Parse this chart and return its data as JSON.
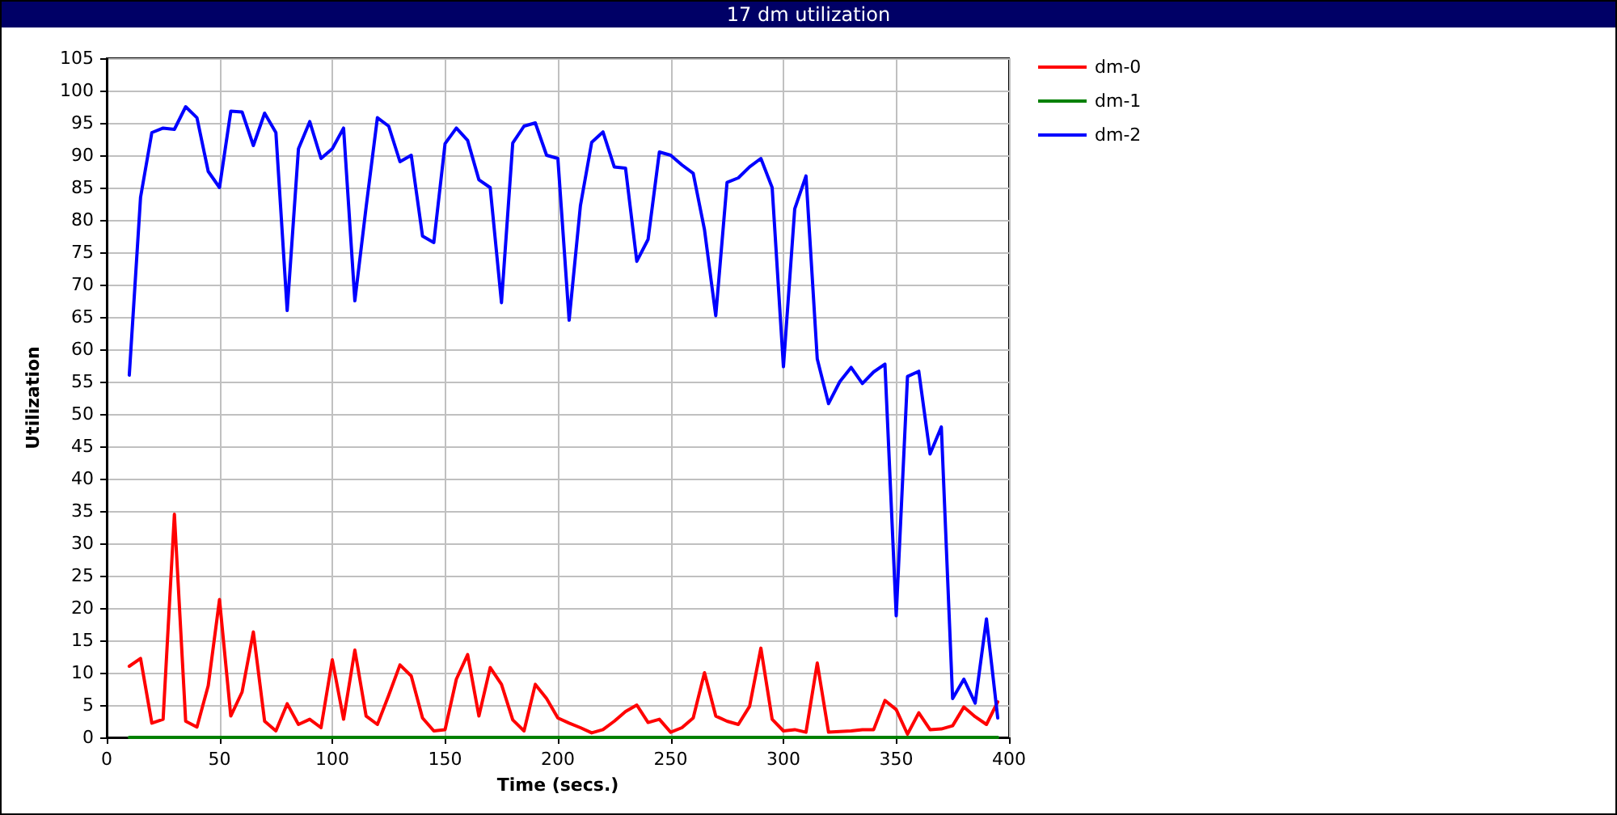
{
  "chart_data": {
    "type": "line",
    "title": "17 dm utilization",
    "xlabel": "Time (secs.)",
    "ylabel": "Utilization",
    "x": [
      10,
      15,
      20,
      25,
      30,
      35,
      40,
      45,
      50,
      55,
      60,
      65,
      70,
      75,
      80,
      85,
      90,
      95,
      100,
      105,
      110,
      115,
      120,
      125,
      130,
      135,
      140,
      145,
      150,
      155,
      160,
      165,
      170,
      175,
      180,
      185,
      190,
      195,
      200,
      205,
      210,
      215,
      220,
      225,
      230,
      235,
      240,
      245,
      250,
      255,
      260,
      265,
      270,
      275,
      280,
      285,
      290,
      295,
      300,
      305,
      310,
      315,
      320,
      325,
      330,
      335,
      340,
      345,
      350,
      355,
      360,
      365,
      370,
      375,
      380,
      385,
      390,
      395
    ],
    "series": [
      {
        "name": "dm-0",
        "color": "#ff0000",
        "values": [
          11,
          12.2,
          2.2,
          2.8,
          34.5,
          2.5,
          1.6,
          8,
          21.3,
          3.3,
          7,
          16.3,
          2.5,
          1,
          5.2,
          2,
          2.8,
          1.5,
          12,
          2.8,
          13.5,
          3.3,
          2,
          6.5,
          11.2,
          9.5,
          3,
          1,
          1.2,
          9,
          12.8,
          3.3,
          10.8,
          8.2,
          2.7,
          1,
          8.2,
          6,
          3,
          2.2,
          1.5,
          0.7,
          1.2,
          2.5,
          4,
          5,
          2.3,
          2.8,
          0.8,
          1.5,
          3,
          10,
          3.3,
          2.5,
          2,
          4.8,
          13.8,
          2.8,
          1,
          1.2,
          0.8,
          11.5,
          0.8,
          0.9,
          1,
          1.2,
          1.2,
          5.7,
          4.3,
          0.5,
          3.8,
          1.2,
          1.3,
          1.8,
          4.7,
          3.2,
          2,
          5.5
        ]
      },
      {
        "name": "dm-1",
        "color": "#008000",
        "values": [
          0,
          0,
          0,
          0,
          0,
          0,
          0,
          0,
          0,
          0,
          0,
          0,
          0,
          0,
          0,
          0,
          0,
          0,
          0,
          0,
          0,
          0,
          0,
          0,
          0,
          0,
          0,
          0,
          0,
          0,
          0,
          0,
          0,
          0,
          0,
          0,
          0,
          0,
          0,
          0,
          0,
          0,
          0,
          0,
          0,
          0,
          0,
          0,
          0,
          0,
          0,
          0,
          0,
          0,
          0,
          0,
          0,
          0,
          0,
          0,
          0,
          0,
          0,
          0,
          0,
          0,
          0,
          0,
          0,
          0,
          0,
          0,
          0,
          0,
          0,
          0,
          0,
          0
        ]
      },
      {
        "name": "dm-2",
        "color": "#0000ff",
        "values": [
          56,
          83.5,
          93.5,
          94.2,
          94,
          97.5,
          95.8,
          87.5,
          85,
          96.8,
          96.7,
          91.5,
          96.5,
          93.5,
          66,
          91,
          95.2,
          89.5,
          91,
          94.2,
          67.5,
          82,
          95.8,
          94.5,
          89,
          90,
          77.5,
          76.5,
          91.8,
          94.2,
          92.3,
          86.2,
          85,
          67.2,
          91.9,
          94.5,
          95,
          90,
          89.5,
          64.5,
          82.2,
          92,
          93.6,
          88.2,
          88,
          73.6,
          77,
          90.5,
          90,
          88.5,
          87.2,
          78.5,
          65.2,
          85.8,
          86.5,
          88.2,
          89.5,
          85,
          57.3,
          81.7,
          86.8,
          58.5,
          51.6,
          55,
          57.2,
          54.7,
          56.5,
          57.7,
          18.8,
          55.8,
          56.6,
          43.8,
          48,
          6,
          9,
          5.3,
          18.3,
          3
        ]
      }
    ],
    "xlim": [
      0,
      400
    ],
    "xticks": [
      0,
      50,
      100,
      150,
      200,
      250,
      300,
      350,
      400
    ],
    "ylim": [
      0,
      105
    ],
    "yticks": [
      0,
      5,
      10,
      15,
      20,
      25,
      30,
      35,
      40,
      45,
      50,
      55,
      60,
      65,
      70,
      75,
      80,
      85,
      90,
      95,
      100,
      105
    ],
    "grid": true,
    "legend": "top right",
    "marker": "none",
    "line_style": "solid"
  }
}
